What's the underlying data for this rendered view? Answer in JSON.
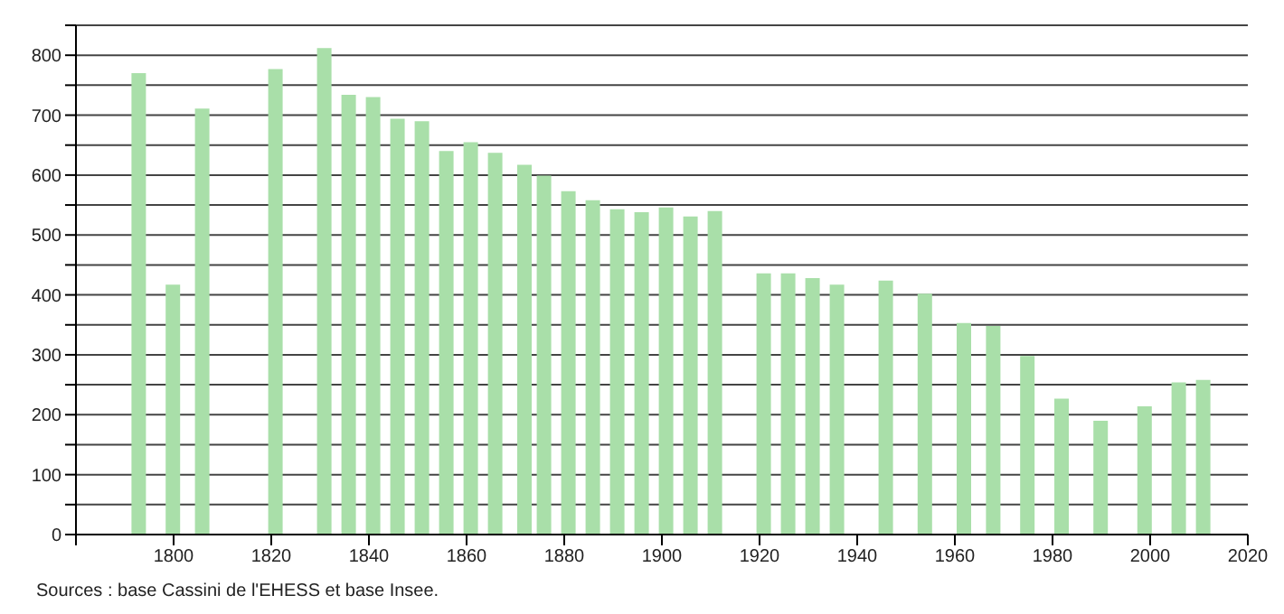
{
  "chart_data": {
    "type": "bar",
    "x": [
      1793,
      1800,
      1806,
      1821,
      1831,
      1836,
      1841,
      1846,
      1851,
      1856,
      1861,
      1866,
      1872,
      1876,
      1881,
      1886,
      1891,
      1896,
      1901,
      1906,
      1911,
      1921,
      1926,
      1931,
      1936,
      1946,
      1954,
      1962,
      1968,
      1975,
      1982,
      1990,
      1999,
      2006,
      2011
    ],
    "values": [
      770,
      417,
      711,
      777,
      812,
      734,
      730,
      694,
      690,
      640,
      655,
      637,
      617,
      599,
      573,
      558,
      543,
      538,
      546,
      531,
      540,
      436,
      436,
      428,
      417,
      424,
      402,
      353,
      348,
      298,
      227,
      190,
      214,
      254,
      258
    ],
    "color": "#a9dfa9",
    "xlim": [
      1780,
      2020
    ],
    "xticks": [
      {
        "value": 1780,
        "label": null
      },
      1800,
      1820,
      1840,
      1860,
      1880,
      1900,
      1920,
      1940,
      1960,
      1980,
      2000,
      2020
    ],
    "ylim": [
      0,
      850
    ],
    "yticks": [
      0,
      {
        "value": 50,
        "label": null
      },
      100,
      {
        "value": 150,
        "label": null
      },
      200,
      {
        "value": 250,
        "label": null
      },
      300,
      {
        "value": 350,
        "label": null
      },
      400,
      {
        "value": 450,
        "label": null
      },
      500,
      {
        "value": 550,
        "label": null
      },
      600,
      {
        "value": 650,
        "label": null
      },
      700,
      {
        "value": 750,
        "label": null
      },
      800,
      {
        "value": 850,
        "label": null
      }
    ],
    "grid": "y",
    "annotations": [
      "Sources : base Cassini de l'EHESS et base Insee."
    ]
  }
}
